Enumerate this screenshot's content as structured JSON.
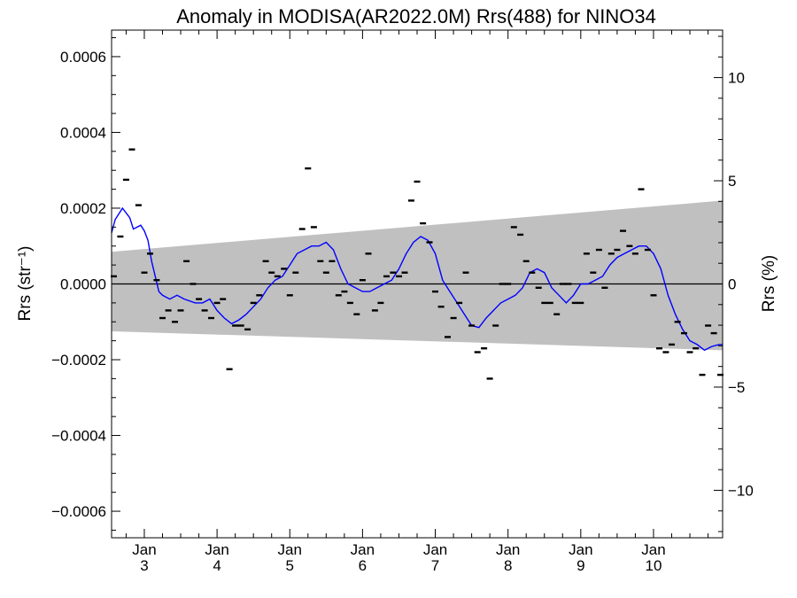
{
  "chart_data": {
    "type": "line",
    "title": "Anomaly in MODISA(AR2022.0M) Rrs(488) for NINO34",
    "ylabel_left": "Rrs (str⁻¹)",
    "ylabel_right": "Rrs (%)",
    "xlim": [
      2.55,
      10.95
    ],
    "ylim": [
      -0.00067,
      0.00067
    ],
    "y2lim": [
      -12.3,
      12.3
    ],
    "x_ticks": [
      {
        "x": 3,
        "top": "Jan",
        "bottom": "3"
      },
      {
        "x": 4,
        "top": "Jan",
        "bottom": "4"
      },
      {
        "x": 5,
        "top": "Jan",
        "bottom": "5"
      },
      {
        "x": 6,
        "top": "Jan",
        "bottom": "6"
      },
      {
        "x": 7,
        "top": "Jan",
        "bottom": "7"
      },
      {
        "x": 8,
        "top": "Jan",
        "bottom": "8"
      },
      {
        "x": 9,
        "top": "Jan",
        "bottom": "9"
      },
      {
        "x": 10,
        "top": "Jan",
        "bottom": "10"
      }
    ],
    "y_ticks": [
      {
        "v": 0.0006,
        "label": "0.0006"
      },
      {
        "v": 0.0004,
        "label": "0.0004"
      },
      {
        "v": 0.0002,
        "label": "0.0002"
      },
      {
        "v": 0,
        "label": "0.0000"
      },
      {
        "v": -0.0002,
        "label": "−0.0002"
      },
      {
        "v": -0.0004,
        "label": "−0.0004"
      },
      {
        "v": -0.0006,
        "label": "−0.0006"
      }
    ],
    "y2_ticks": [
      {
        "v": 10,
        "label": "10"
      },
      {
        "v": 5,
        "label": "5"
      },
      {
        "v": 0,
        "label": "0"
      },
      {
        "v": -5,
        "label": "−5"
      },
      {
        "v": -10,
        "label": "−10"
      }
    ],
    "band": {
      "x": [
        2.55,
        10.95
      ],
      "upper": [
        8.5e-05,
        0.00022
      ],
      "lower": [
        -0.000125,
        -0.000175
      ],
      "color": "#c0c0c0"
    },
    "zero_line": 0,
    "monthly_anomalies": {
      "color": "#000000",
      "x": [
        2.58,
        2.67,
        2.75,
        2.83,
        2.92,
        3.0,
        3.08,
        3.17,
        3.25,
        3.33,
        3.42,
        3.5,
        3.58,
        3.67,
        3.75,
        3.83,
        3.92,
        4.0,
        4.08,
        4.17,
        4.25,
        4.33,
        4.42,
        4.5,
        4.58,
        4.67,
        4.75,
        4.83,
        4.92,
        5.0,
        5.08,
        5.17,
        5.25,
        5.33,
        5.42,
        5.5,
        5.58,
        5.67,
        5.75,
        5.83,
        5.92,
        6.0,
        6.08,
        6.17,
        6.25,
        6.33,
        6.42,
        6.5,
        6.58,
        6.67,
        6.75,
        6.83,
        6.92,
        7.0,
        7.08,
        7.17,
        7.25,
        7.33,
        7.42,
        7.5,
        7.58,
        7.67,
        7.75,
        7.83,
        7.92,
        8.0,
        8.08,
        8.17,
        8.25,
        8.33,
        8.42,
        8.5,
        8.58,
        8.67,
        8.75,
        8.83,
        8.92,
        9.0,
        9.08,
        9.17,
        9.25,
        9.33,
        9.42,
        9.5,
        9.58,
        9.67,
        9.75,
        9.83,
        9.92,
        10.0,
        10.08,
        10.17,
        10.25,
        10.33,
        10.42,
        10.5,
        10.58,
        10.67,
        10.75,
        10.83,
        10.92
      ],
      "y": [
        2e-05,
        0.000125,
        0.000275,
        0.000355,
        0.000208,
        3e-05,
        8e-05,
        1e-05,
        -9e-05,
        -7e-05,
        -0.0001,
        -7e-05,
        6e-05,
        0.0,
        -4e-05,
        -7e-05,
        -9e-05,
        -5e-05,
        -4e-05,
        -0.000225,
        -0.00011,
        -0.00011,
        -0.00012,
        -5e-05,
        -3e-05,
        6e-05,
        3e-05,
        2e-05,
        4e-05,
        -3e-05,
        3e-05,
        0.000145,
        0.000305,
        0.00015,
        6e-05,
        3e-05,
        6e-05,
        -3e-05,
        -2e-05,
        -5e-05,
        -8e-05,
        1e-05,
        8e-05,
        -7e-05,
        -5e-05,
        2e-05,
        3e-05,
        2e-05,
        3e-05,
        0.00022,
        0.00027,
        0.00016,
        0.00011,
        -2e-05,
        -6e-05,
        -0.00014,
        -9e-05,
        -5e-05,
        3e-05,
        -0.00011,
        -0.00018,
        -0.00017,
        -0.00025,
        -0.00011,
        0.0,
        0.0,
        0.00015,
        0.00013,
        6e-05,
        3e-05,
        -1e-05,
        -5e-05,
        -5e-05,
        -8e-05,
        0.0,
        0.0,
        -5e-05,
        -5e-05,
        8e-05,
        3e-05,
        9e-05,
        -1e-05,
        8e-05,
        9e-05,
        0.00014,
        0.0001,
        8e-05,
        0.00025,
        9e-05,
        -3e-05,
        -0.00017,
        -0.00018,
        -0.00016,
        -0.0001,
        -0.00013,
        -0.00018,
        -0.00017,
        -0.00024,
        -0.00011,
        -0.00013,
        -0.00024
      ]
    },
    "running_mean": {
      "color": "#0000ff",
      "x": [
        2.55,
        2.6,
        2.7,
        2.8,
        2.85,
        2.9,
        2.95,
        3.0,
        3.05,
        3.1,
        3.2,
        3.25,
        3.35,
        3.45,
        3.55,
        3.7,
        3.8,
        3.9,
        4.0,
        4.1,
        4.2,
        4.3,
        4.4,
        4.5,
        4.6,
        4.7,
        4.8,
        4.9,
        5.0,
        5.1,
        5.2,
        5.3,
        5.4,
        5.5,
        5.6,
        5.7,
        5.8,
        5.9,
        6.0,
        6.1,
        6.2,
        6.3,
        6.4,
        6.5,
        6.6,
        6.7,
        6.8,
        6.9,
        7.0,
        7.1,
        7.2,
        7.3,
        7.4,
        7.5,
        7.6,
        7.7,
        7.8,
        7.9,
        8.0,
        8.1,
        8.2,
        8.3,
        8.4,
        8.5,
        8.6,
        8.7,
        8.8,
        8.9,
        9.0,
        9.1,
        9.2,
        9.3,
        9.4,
        9.5,
        9.6,
        9.7,
        9.8,
        9.9,
        10.0,
        10.1,
        10.2,
        10.3,
        10.4,
        10.5,
        10.6,
        10.7,
        10.8,
        10.9,
        10.95
      ],
      "y": [
        0.000135,
        0.00017,
        0.0002,
        0.000175,
        0.000145,
        0.00015,
        0.000155,
        0.00014,
        0.000115,
        6e-05,
        -2e-05,
        -3e-05,
        -4e-05,
        -3e-05,
        -4e-05,
        -5e-05,
        -5e-05,
        -4e-05,
        -7e-05,
        -9e-05,
        -0.000105,
        -9.5e-05,
        -8e-05,
        -6e-05,
        -4e-05,
        -1e-05,
        1e-05,
        2e-05,
        5e-05,
        8e-05,
        9e-05,
        0.0001,
        0.0001,
        0.00011,
        9e-05,
        4e-05,
        0.0,
        -1e-05,
        -2e-05,
        -2e-05,
        -1e-05,
        0.0,
        1e-05,
        4e-05,
        8e-05,
        0.00011,
        0.000125,
        0.000115,
        8e-05,
        1e-05,
        -2e-05,
        -5e-05,
        -8e-05,
        -0.00011,
        -0.000115,
        -9e-05,
        -7e-05,
        -5e-05,
        -4e-05,
        -3e-05,
        -1e-05,
        3e-05,
        4e-05,
        3e-05,
        -1e-05,
        -3e-05,
        -5e-05,
        -3e-05,
        0.0,
        0.0,
        1e-05,
        2e-05,
        5e-05,
        7e-05,
        8e-05,
        9e-05,
        0.0001,
        0.0001,
        8e-05,
        4e-05,
        -3e-05,
        -8e-05,
        -0.00012,
        -0.00015,
        -0.00016,
        -0.000175,
        -0.000165,
        -0.00016,
        -0.00016
      ]
    }
  }
}
